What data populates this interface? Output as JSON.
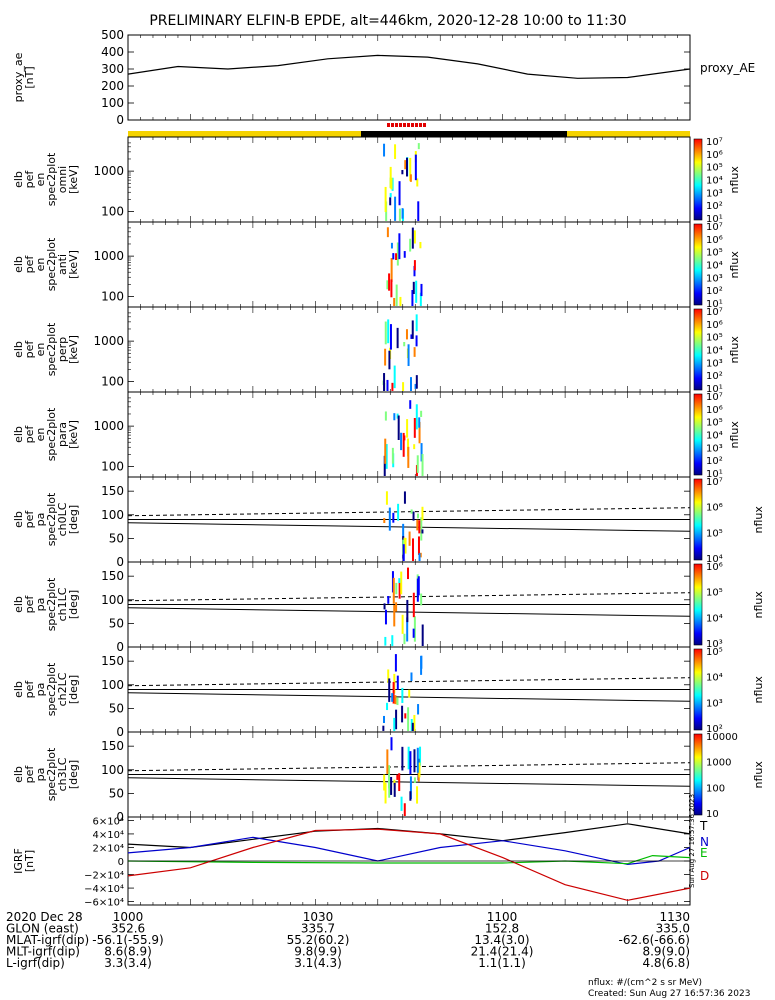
{
  "title": "PRELIMINARY ELFIN-B EPDE, alt=446km, 2020-12-28 10:00 to 11:30",
  "chart_data": {
    "type": "line",
    "x_range_hhmm": [
      "10:00",
      "11:30"
    ],
    "x_ticks": [
      "1000",
      "1030",
      "1100",
      "1130"
    ],
    "panels": [
      {
        "name": "proxy_ae",
        "ylabel": [
          "proxy_ae",
          "[nT]"
        ],
        "ylim": [
          0,
          500
        ],
        "yticks": [
          "0",
          "100",
          "200",
          "300",
          "400",
          "500"
        ],
        "legend": "proxy_AE",
        "series": [
          {
            "name": "proxy_AE",
            "color": "#000000",
            "x_min": [
              0,
              8,
              16,
              24,
              32,
              40,
              48,
              56,
              64,
              72,
              80,
              90
            ],
            "values": [
              270,
              315,
              300,
              320,
              360,
              380,
              370,
              330,
              270,
              245,
              250,
              300
            ]
          }
        ]
      },
      {
        "name": "en_spec_omni",
        "ylabel": [
          "elb",
          "pef",
          "en",
          "spec2plot",
          "omni",
          "[keV]"
        ],
        "yticks": [
          "100",
          "1000"
        ],
        "colorbar": {
          "label": "nflux",
          "ticks": [
            "10¹",
            "10²",
            "10³",
            "10⁴",
            "10⁵",
            "10⁶",
            "10⁷"
          ]
        }
      },
      {
        "name": "en_spec_anti",
        "ylabel": [
          "elb",
          "pef",
          "en",
          "spec2plot",
          "anti",
          "[keV]"
        ],
        "yticks": [
          "100",
          "1000"
        ],
        "colorbar": {
          "label": "nflux",
          "ticks": [
            "10¹",
            "10²",
            "10³",
            "10⁴",
            "10⁵",
            "10⁶",
            "10⁷"
          ]
        }
      },
      {
        "name": "en_spec_perp",
        "ylabel": [
          "elb",
          "pef",
          "en",
          "spec2plot",
          "perp",
          "[keV]"
        ],
        "yticks": [
          "100",
          "1000"
        ],
        "colorbar": {
          "label": "nflux",
          "ticks": [
            "10¹",
            "10²",
            "10³",
            "10⁴",
            "10⁵",
            "10⁶",
            "10⁷"
          ]
        }
      },
      {
        "name": "en_spec_para",
        "ylabel": [
          "elb",
          "pef",
          "en",
          "spec2plot",
          "para",
          "[keV]"
        ],
        "yticks": [
          "100",
          "1000"
        ],
        "colorbar": {
          "label": "nflux",
          "ticks": [
            "10¹",
            "10²",
            "10³",
            "10⁴",
            "10⁵",
            "10⁶",
            "10⁷"
          ]
        }
      },
      {
        "name": "pa_spec_ch0LC",
        "ylabel": [
          "elb",
          "pef",
          "pa",
          "spec2plot",
          "ch0LC",
          "[deg]"
        ],
        "ylim": [
          0,
          180
        ],
        "yticks": [
          "0",
          "50",
          "100",
          "150"
        ],
        "colorbar": {
          "label": "nflux",
          "ticks": [
            "10⁴",
            "10⁵",
            "10⁶",
            "10⁷"
          ]
        }
      },
      {
        "name": "pa_spec_ch1LC",
        "ylabel": [
          "elb",
          "pef",
          "pa",
          "spec2plot",
          "ch1LC",
          "[deg]"
        ],
        "ylim": [
          0,
          180
        ],
        "yticks": [
          "0",
          "50",
          "100",
          "150"
        ],
        "colorbar": {
          "label": "nflux",
          "ticks": [
            "10³",
            "10⁴",
            "10⁵",
            "10⁶"
          ]
        }
      },
      {
        "name": "pa_spec_ch2LC",
        "ylabel": [
          "elb",
          "pef",
          "pa",
          "spec2plot",
          "ch2LC",
          "[deg]"
        ],
        "ylim": [
          0,
          180
        ],
        "yticks": [
          "0",
          "50",
          "100",
          "150"
        ],
        "colorbar": {
          "label": "nflux",
          "ticks": [
            "10²",
            "10³",
            "10⁴",
            "10⁵"
          ]
        }
      },
      {
        "name": "pa_spec_ch3LC",
        "ylabel": [
          "elb",
          "pef",
          "pa",
          "spec2plot",
          "ch3LC",
          "[deg]"
        ],
        "ylim": [
          0,
          180
        ],
        "yticks": [
          "0",
          "50",
          "100",
          "150"
        ],
        "colorbar": {
          "label": "nflux",
          "ticks": [
            "10",
            "100",
            "1000",
            "10000"
          ]
        }
      },
      {
        "name": "igrf",
        "ylabel": [
          "IGRF",
          "[nT]"
        ],
        "ylim": [
          -65000,
          65000
        ],
        "yticks": [
          "−6×10⁴",
          "−4×10⁴",
          "−2×10⁴",
          "0",
          "2×10⁴",
          "4×10⁴",
          "6×10⁴"
        ],
        "series": [
          {
            "name": "T",
            "color": "#000000",
            "x_min": [
              0,
              10,
              20,
              30,
              40,
              50,
              60,
              70,
              80,
              90
            ],
            "values": [
              25000,
              20000,
              32000,
              44000,
              48000,
              40000,
              30000,
              42000,
              55000,
              40000
            ]
          },
          {
            "name": "N",
            "color": "#0000cc",
            "x_min": [
              0,
              10,
              20,
              30,
              40,
              50,
              60,
              70,
              80,
              85,
              90
            ],
            "values": [
              12000,
              20000,
              35000,
              20000,
              0,
              20000,
              30000,
              15000,
              -5000,
              0,
              20000
            ]
          },
          {
            "name": "E",
            "color": "#00bb00",
            "x_min": [
              0,
              20,
              40,
              60,
              70,
              80,
              84,
              90
            ],
            "values": [
              0,
              -2000,
              -3000,
              -3000,
              0,
              -4000,
              8000,
              5000
            ]
          },
          {
            "name": "D",
            "color": "#cc0000",
            "x_min": [
              0,
              10,
              20,
              30,
              40,
              50,
              60,
              70,
              80,
              90
            ],
            "values": [
              -22000,
              -10000,
              20000,
              45000,
              47000,
              40000,
              5000,
              -35000,
              -58000,
              -40000
            ]
          }
        ]
      }
    ],
    "orbit_table": {
      "rows": [
        {
          "label": "2020 Dec 28",
          "values": [
            "1000",
            "1030",
            "1100",
            "1130"
          ]
        },
        {
          "label": "GLON (east)",
          "values": [
            "352.6",
            "335.7",
            "152.8",
            "335.0"
          ]
        },
        {
          "label": "MLAT-igrf(dip)",
          "values": [
            "-56.1(-55.9)",
            "55.2(60.2)",
            "13.4(3.0)",
            "-62.6(-66.6)"
          ]
        },
        {
          "label": "MLT-igrf(dip)",
          "values": [
            "8.6(8.9)",
            "9.8(9.9)",
            "21.4(21.4)",
            "8.9(9.0)"
          ]
        },
        {
          "label": "L-igrf(dip)",
          "values": [
            "3.3(3.4)",
            "3.1(4.3)",
            "1.1(1.1)",
            "4.8(6.8)"
          ]
        }
      ]
    }
  },
  "footer": {
    "units": "nflux: #/(cm^2 s sr MeV)",
    "created": "Created: Sun Aug 27 16:57:36 2023",
    "side_stamp": "Sun Aug 27 16:57:36 2023"
  }
}
